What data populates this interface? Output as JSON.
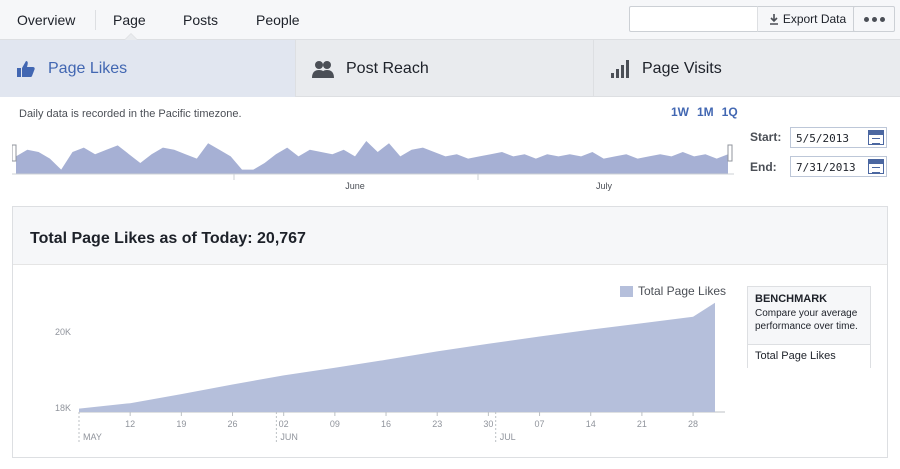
{
  "topnav": {
    "tabs": [
      "Overview",
      "Page",
      "Posts",
      "People"
    ],
    "export_label": "Export Data"
  },
  "metric_tabs": [
    {
      "label": "Page Likes",
      "icon": "thumbs-up-icon",
      "active": true
    },
    {
      "label": "Post Reach",
      "icon": "people-icon",
      "active": false
    },
    {
      "label": "Page Visits",
      "icon": "bar-chart-icon",
      "active": false
    }
  ],
  "range_panel": {
    "timezone_note": "Daily data is recorded in the Pacific timezone.",
    "ranges": [
      "1W",
      "1M",
      "1Q"
    ],
    "start_label": "Start:",
    "start_value": "5/5/2013",
    "end_label": "End:",
    "end_value": "7/31/2013",
    "month_ticks": [
      "June",
      "July"
    ]
  },
  "card": {
    "title": "Total Page Likes as of Today: 20,767"
  },
  "benchmark": {
    "title": "BENCHMARK",
    "description": "Compare your average performance over time.",
    "link": "Total Page Likes"
  },
  "colors": {
    "accent": "#4267b2",
    "area_fill": "#b5bfdb",
    "mini_fill": "#a6b0d4"
  },
  "mini_chart": {
    "type": "area",
    "values": [
      40,
      55,
      50,
      35,
      10,
      50,
      60,
      45,
      55,
      65,
      45,
      25,
      45,
      60,
      55,
      45,
      35,
      70,
      55,
      40,
      10,
      10,
      25,
      45,
      60,
      40,
      55,
      50,
      45,
      55,
      40,
      75,
      50,
      70,
      40,
      55,
      60,
      50,
      40,
      45,
      35,
      40,
      45,
      50,
      40,
      45,
      35,
      45,
      40,
      45,
      40,
      50,
      35,
      40,
      45,
      35,
      40,
      45,
      40,
      50,
      40,
      45,
      35,
      45
    ]
  },
  "chart_data": {
    "type": "area",
    "title": "Total Page Likes as of Today: 20,767",
    "legend": "Total Page Likes",
    "legend_position": "top-right",
    "ylabel": "",
    "yticks": [
      "18K",
      "20K"
    ],
    "ylim": [
      17900,
      21100
    ],
    "x_tick_labels": [
      "12",
      "19",
      "26",
      "02",
      "09",
      "16",
      "23",
      "30",
      "07",
      "14",
      "21",
      "28"
    ],
    "month_labels": [
      "MAY",
      "JUN",
      "JUL"
    ],
    "x": [
      "2013-05-05",
      "2013-05-12",
      "2013-05-19",
      "2013-05-26",
      "2013-06-02",
      "2013-06-09",
      "2013-06-16",
      "2013-06-23",
      "2013-06-30",
      "2013-07-07",
      "2013-07-14",
      "2013-07-21",
      "2013-07-28",
      "2013-07-31"
    ],
    "values": [
      17990,
      18130,
      18370,
      18620,
      18860,
      19060,
      19270,
      19490,
      19690,
      19880,
      20060,
      20230,
      20400,
      20767
    ],
    "grid": false
  }
}
